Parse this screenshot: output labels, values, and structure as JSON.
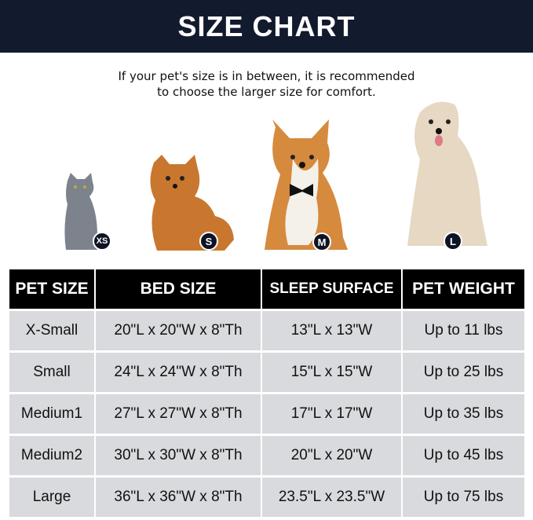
{
  "title": "SIZE CHART",
  "note": [
    "If your pet's size is in between, it is recommended",
    "to choose the larger size for comfort."
  ],
  "pets": [
    {
      "animal": "cat",
      "badge": "XS",
      "color": "#7c838c"
    },
    {
      "animal": "pomeranian",
      "badge": "S",
      "color": "#c9772f"
    },
    {
      "animal": "corgi",
      "badge": "M",
      "color": "#d58a3d"
    },
    {
      "animal": "golden-retriever",
      "badge": "L",
      "color": "#e6d8c2"
    }
  ],
  "table": {
    "headers": [
      "PET SIZE",
      "BED SIZE",
      "SLEEP SURFACE",
      "PET WEIGHT"
    ],
    "rows": [
      [
        "X-Small",
        "20\"L x 20\"W x 8\"Th",
        "13\"L x 13\"W",
        "Up to 11 lbs"
      ],
      [
        "Small",
        "24\"L x 24\"W x 8\"Th",
        "15\"L x 15\"W",
        "Up to 25 lbs"
      ],
      [
        "Medium1",
        "27\"L x 27\"W x 8\"Th",
        "17\"L x 17\"W",
        "Up to 35 lbs"
      ],
      [
        "Medium2",
        "30\"L x 30\"W x 8\"Th",
        "20\"L x 20\"W",
        "Up to 45 lbs"
      ],
      [
        "Large",
        "36\"L x 36\"W x 8\"Th",
        "23.5\"L x 23.5\"W",
        "Up to 75 lbs"
      ]
    ]
  }
}
